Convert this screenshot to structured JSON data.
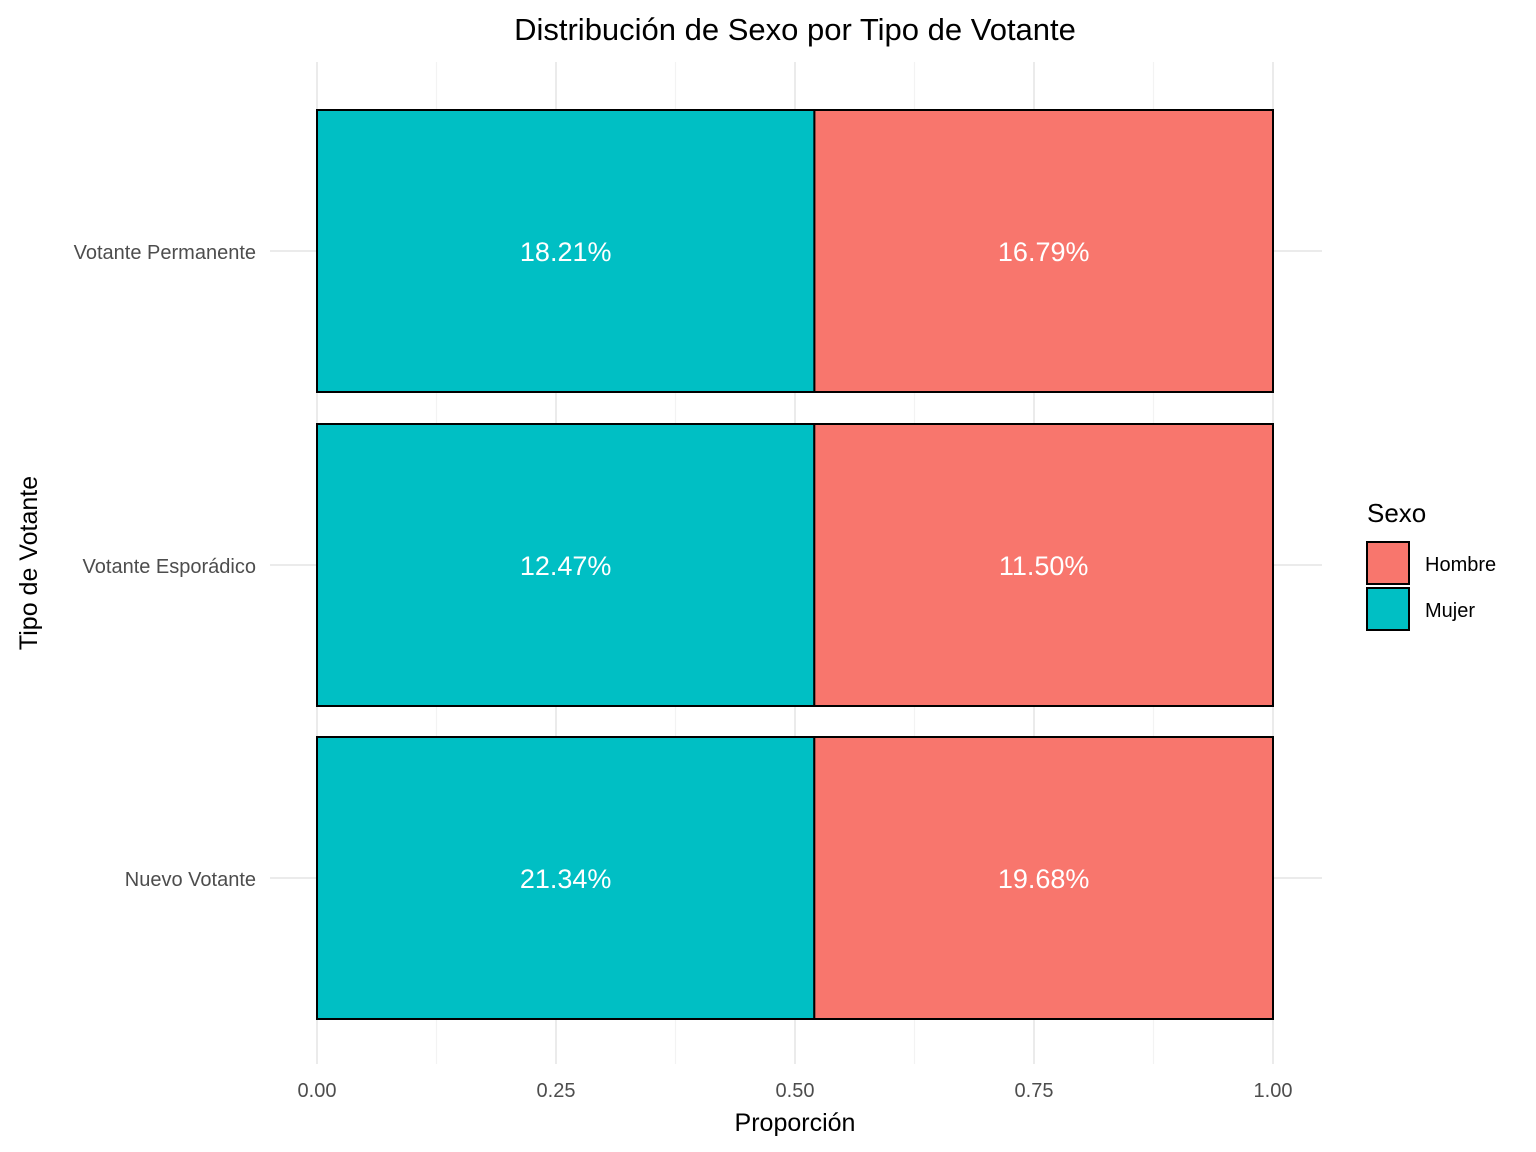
{
  "chart_data": {
    "type": "bar",
    "orientation": "horizontal",
    "stacked": "fill",
    "title": "Distribución de Sexo por Tipo de Votante",
    "xlabel": "Proporción",
    "ylabel": "Tipo de Votante",
    "xlim": [
      0,
      1
    ],
    "x_ticks": [
      "0.00",
      "0.25",
      "0.50",
      "0.75",
      "1.00"
    ],
    "categories": [
      "Votante Permanente",
      "Votante Esporádico",
      "Nuevo Votante"
    ],
    "series": [
      {
        "name": "Mujer",
        "color": "#00bfc4",
        "values": [
          0.5203,
          0.5202,
          0.5202
        ],
        "labels": [
          "18.21%",
          "12.47%",
          "21.34%"
        ]
      },
      {
        "name": "Hombre",
        "color": "#f8766d",
        "values": [
          0.4797,
          0.4798,
          0.4798
        ],
        "labels": [
          "16.79%",
          "11.50%",
          "19.68%"
        ]
      }
    ],
    "legend": {
      "title": "Sexo",
      "position": "right",
      "items": [
        {
          "label": "Hombre",
          "color": "#f8766d"
        },
        {
          "label": "Mujer",
          "color": "#00bfc4"
        }
      ]
    },
    "grid": true
  }
}
